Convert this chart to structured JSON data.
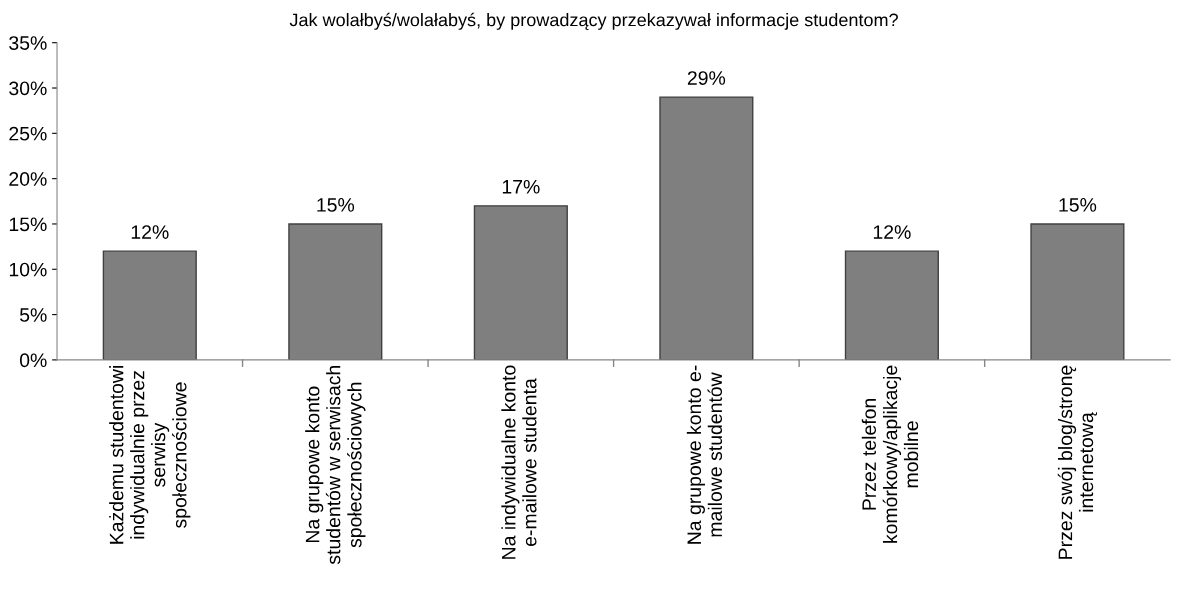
{
  "chart_data": {
    "type": "bar",
    "title": "Jak wolałbyś/wolałabyś, by prowadzący przekazywał informacje studentom?",
    "categories": [
      "Każdemu studentowi\nindywidualnie przez\nserwisy\nspołecznościowe",
      "Na grupowe konto\nstudentów w serwisach\nspołecznościowych",
      "Na indywidualne konto\ne-mailowe studenta",
      "Na grupowe konto e-\nmailowe studentów",
      "Przez telefon\nkomórkowy/aplikacje\nmobilne",
      "Przez swój blog/stronę\ninternetową"
    ],
    "values": [
      12,
      15,
      17,
      29,
      12,
      15
    ],
    "value_labels": [
      "12%",
      "15%",
      "17%",
      "29%",
      "12%",
      "15%"
    ],
    "color": "#7f7f7f",
    "ylim": [
      0,
      35
    ],
    "yticks": [
      {
        "value": 0,
        "label": "0%"
      },
      {
        "value": 5,
        "label": "5%"
      },
      {
        "value": 10,
        "label": "10%"
      },
      {
        "value": 15,
        "label": "15%"
      },
      {
        "value": 20,
        "label": "20%"
      },
      {
        "value": 25,
        "label": "25%"
      },
      {
        "value": 30,
        "label": "30%"
      },
      {
        "value": 35,
        "label": "35%"
      }
    ],
    "grid": false
  }
}
